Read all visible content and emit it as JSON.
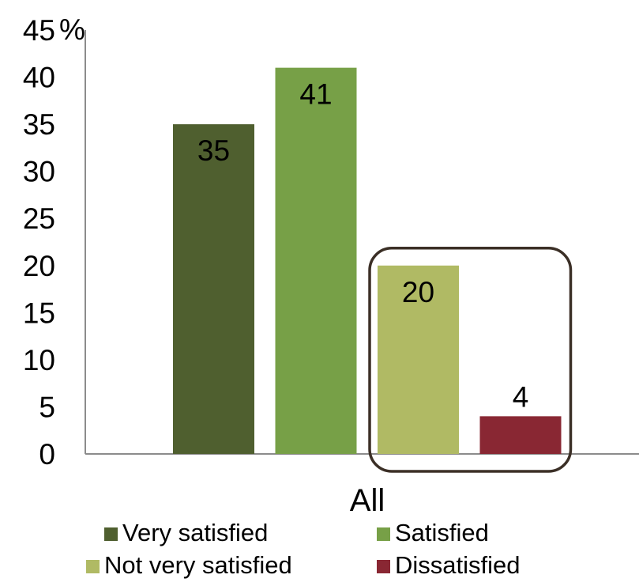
{
  "chart_data": {
    "type": "bar",
    "categories": [
      "All"
    ],
    "series": [
      {
        "name": "Very satisfied",
        "values": [
          35
        ],
        "color": "#4f5f2f"
      },
      {
        "name": "Satisfied",
        "values": [
          41
        ],
        "color": "#77a047"
      },
      {
        "name": "Not very satisfied",
        "values": [
          20
        ],
        "color": "#b0ba64"
      },
      {
        "name": "Dissatisfied",
        "values": [
          4
        ],
        "color": "#892733"
      }
    ],
    "ylim": [
      0,
      45
    ],
    "yticks": [
      0,
      5,
      10,
      15,
      20,
      25,
      30,
      35,
      40,
      45
    ],
    "y_unit": "%",
    "data_labels": [
      "35",
      "41",
      "20",
      "4"
    ],
    "grid": false,
    "legend_position": "bottom",
    "highlight": {
      "series": [
        "Not very satisfied",
        "Dissatisfied"
      ],
      "style": "rounded-box",
      "color": "#3b2f26"
    }
  }
}
